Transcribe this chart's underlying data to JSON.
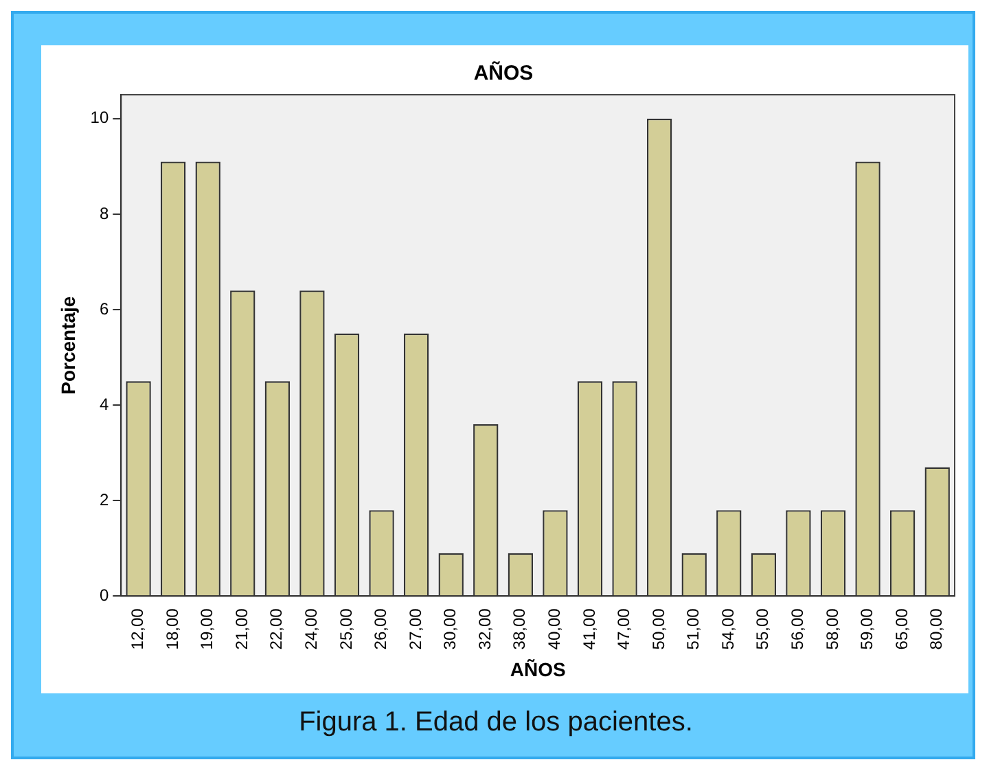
{
  "chart_data": {
    "type": "bar",
    "title": "AÑOS",
    "xlabel": "AÑOS",
    "ylabel": "Porcentaje",
    "categories": [
      "12,00",
      "18,00",
      "19,00",
      "21,00",
      "22,00",
      "24,00",
      "25,00",
      "26,00",
      "27,00",
      "30,00",
      "32,00",
      "38,00",
      "40,00",
      "41,00",
      "47,00",
      "50,00",
      "51,00",
      "54,00",
      "55,00",
      "56,00",
      "58,00",
      "59,00",
      "65,00",
      "80,00"
    ],
    "values": [
      4.5,
      9.1,
      9.1,
      6.4,
      4.5,
      6.4,
      5.5,
      1.8,
      5.5,
      0.9,
      3.6,
      0.9,
      1.8,
      4.5,
      4.5,
      10,
      0.9,
      1.8,
      0.9,
      1.8,
      1.8,
      9.1,
      1.8,
      2.7
    ],
    "color": "#d3ce97",
    "ylim": [
      0,
      10.5
    ],
    "yticks": [
      0,
      2,
      4,
      6,
      8,
      10
    ],
    "grid": false,
    "legend": false,
    "annotations": [
      "Figura 1. Edad de los pacientes."
    ]
  }
}
